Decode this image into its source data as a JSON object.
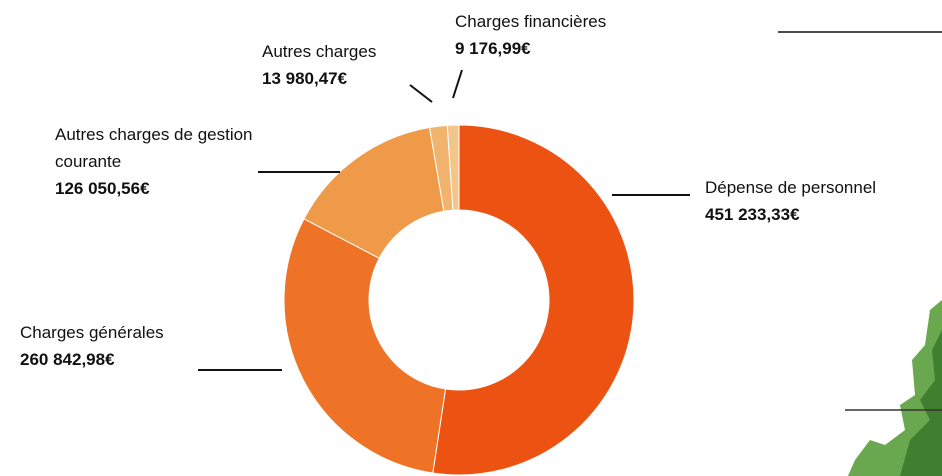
{
  "chart_data": {
    "type": "donut",
    "categories": [
      "Dépense de personnel",
      "Charges générales",
      "Autres charges de gestion courante",
      "Autres charges",
      "Charges financières"
    ],
    "values": [
      451233.33,
      260842.98,
      126050.56,
      13980.47,
      9176.99
    ],
    "value_labels": [
      "451 233,33€",
      "260 842,98€",
      "126 050,56€",
      "13 980,47€",
      "9 176,99€"
    ],
    "colors": [
      "#ec5313",
      "#ee7326",
      "#ee9a48",
      "#f0b46e",
      "#f2c58a"
    ]
  }
}
